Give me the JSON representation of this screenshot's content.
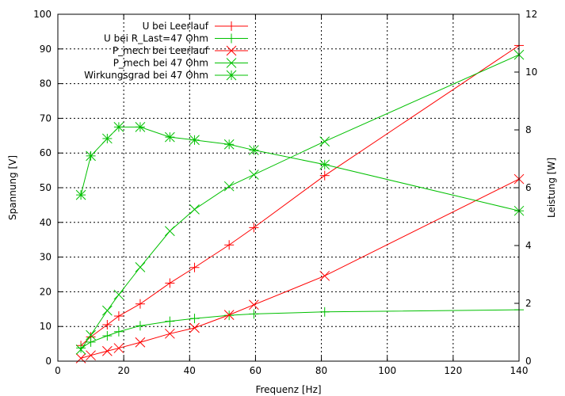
{
  "chart_data": {
    "type": "line",
    "title": "",
    "xlabel": "Frequenz [Hz]",
    "ylabel": "Spannung [V]",
    "y2label": "Leistung [W]",
    "xlim": [
      0,
      140
    ],
    "ylim": [
      0,
      100
    ],
    "y2lim": [
      0,
      12
    ],
    "xticks": [
      "0",
      "20",
      "40",
      "60",
      "80",
      "100",
      "120",
      "140"
    ],
    "yticks": [
      "0",
      "10",
      "20",
      "30",
      "40",
      "50",
      "60",
      "70",
      "80",
      "90",
      "100"
    ],
    "y2ticks": [
      "0",
      "2",
      "4",
      "6",
      "8",
      "10",
      "12"
    ],
    "grid": true,
    "legend_position": "top-left",
    "series": [
      {
        "name": "U bei Leerlauf",
        "axis": "left",
        "marker": "plus",
        "color": "#ff0000",
        "x": [
          7,
          10,
          15,
          18.5,
          25,
          34,
          41.5,
          52,
          59.5,
          81,
          140
        ],
        "y": [
          4.5,
          7,
          10.5,
          13,
          16.5,
          22.5,
          27,
          33.5,
          38.5,
          53.5,
          91
        ]
      },
      {
        "name": "U bei R_Last=47 Ohm",
        "axis": "left",
        "marker": "plus",
        "color": "#00c000",
        "x": [
          7,
          10,
          15,
          18.5,
          25,
          34,
          41.5,
          52,
          59.5,
          81,
          140
        ],
        "y": [
          3.8,
          5.5,
          7.3,
          8.5,
          10.2,
          11.5,
          12.3,
          13.2,
          13.6,
          14.2,
          14.8
        ]
      },
      {
        "name": "P_mech bei Leerlauf",
        "axis": "right",
        "marker": "cross",
        "color": "#ff0000",
        "x": [
          7,
          10,
          15,
          18.5,
          25,
          34,
          41.5,
          52,
          59.5,
          81,
          140
        ],
        "y": [
          0.1,
          0.2,
          0.35,
          0.45,
          0.65,
          0.95,
          1.15,
          1.6,
          1.95,
          2.95,
          6.3
        ]
      },
      {
        "name": "P_mech bei 47 Ohm",
        "axis": "right",
        "marker": "cross",
        "color": "#00c000",
        "x": [
          7,
          10,
          15,
          18.5,
          25,
          34,
          41.5,
          52,
          59.5,
          81,
          140
        ],
        "y": [
          0.4,
          0.9,
          1.75,
          2.3,
          3.25,
          4.5,
          5.25,
          6.05,
          6.45,
          7.6,
          10.6
        ]
      },
      {
        "name": "Wirkungsgrad bei 47 Ohm",
        "axis": "right",
        "marker": "star",
        "color": "#00c000",
        "x": [
          7,
          10,
          15,
          18.5,
          25,
          34,
          41.5,
          52,
          59.5,
          81,
          140
        ],
        "y": [
          5.75,
          7.1,
          7.7,
          8.1,
          8.1,
          7.75,
          7.65,
          7.5,
          7.3,
          6.8,
          5.2
        ]
      }
    ]
  }
}
